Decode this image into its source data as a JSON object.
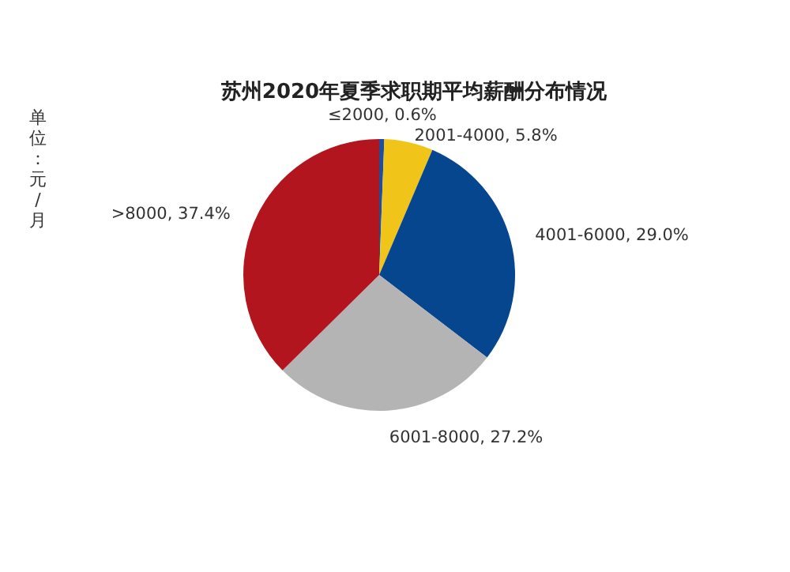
{
  "chart_data": {
    "type": "pie",
    "title": "苏州2020年夏季求职期平均薪酬分布情况",
    "annotations": [
      "单位：元/月"
    ],
    "categories": [
      "≤2000",
      "2001-4000",
      "4001-6000",
      "6001-8000",
      ">8000"
    ],
    "values": [
      0.6,
      5.8,
      29.0,
      27.2,
      37.4
    ],
    "value_labels": [
      "0.6%",
      "5.8%",
      "29.0%",
      "27.2%",
      "37.4%"
    ],
    "colors": [
      "#1f4e9a",
      "#f0c419",
      "#05468f",
      "#b4b4b4",
      "#b3151f"
    ]
  }
}
